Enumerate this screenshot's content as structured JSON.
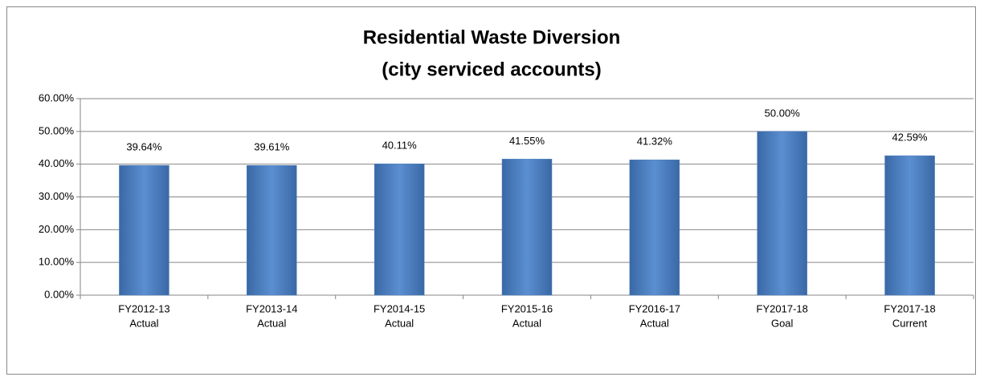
{
  "chart_data": {
    "type": "bar",
    "title": [
      "Residential Waste Diversion",
      "(city serviced accounts)"
    ],
    "categories": [
      [
        "FY2012-13",
        "Actual"
      ],
      [
        "FY2013-14",
        "Actual"
      ],
      [
        "FY2014-15",
        "Actual"
      ],
      [
        "FY2015-16",
        "Actual"
      ],
      [
        "FY2016-17",
        "Actual"
      ],
      [
        "FY2017-18",
        "Goal"
      ],
      [
        "FY2017-18",
        "Current"
      ]
    ],
    "values": [
      39.64,
      39.61,
      40.11,
      41.55,
      41.32,
      50.0,
      42.59
    ],
    "value_labels": [
      "39.64%",
      "39.61%",
      "40.11%",
      "41.55%",
      "41.32%",
      "50.00%",
      "42.59%"
    ],
    "color": "#4f81bd",
    "ylim": [
      0,
      60
    ],
    "yticks": [
      {
        "value": 0,
        "label": "0.00%"
      },
      {
        "value": 10,
        "label": "10.00%"
      },
      {
        "value": 20,
        "label": "20.00%"
      },
      {
        "value": 30,
        "label": "30.00%"
      },
      {
        "value": 40,
        "label": "40.00%"
      },
      {
        "value": 50,
        "label": "50.00%"
      },
      {
        "value": 60,
        "label": "60.00%"
      }
    ],
    "grid": true
  }
}
